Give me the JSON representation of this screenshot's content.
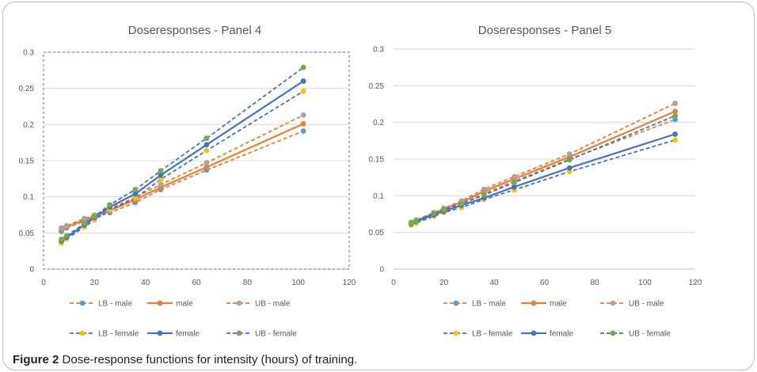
{
  "figure": {
    "caption_label": "Figure 2",
    "caption_text": " Dose-response functions for intensity (hours) of training."
  },
  "colors": {
    "male": "#ED7D31",
    "female": "#4472C4",
    "lb_male": "#5B9BD5",
    "ub_male": "#A5A5A5",
    "lb_female": "#FFC000",
    "ub_female": "#70AD47",
    "grid": "#d9d9d9",
    "axis_text": "#595959",
    "title_text": "#595959"
  },
  "chart_data": [
    {
      "type": "line",
      "title": "Doseresponses - Panel 4",
      "xlabel": "",
      "ylabel": "",
      "xlim": [
        0,
        120
      ],
      "ylim": [
        0,
        0.3
      ],
      "xticks": [
        "0",
        "20",
        "40",
        "60",
        "80",
        "100",
        "120"
      ],
      "yticks": [
        "0",
        "0.05",
        "0.1",
        "0.15",
        "0.2",
        "0.25",
        "0.3"
      ],
      "grid": true,
      "legend_position": "bottom",
      "x": [
        7,
        9,
        16,
        20,
        26,
        36,
        46,
        64,
        102
      ],
      "series": [
        {
          "name": "LB - male",
          "key": "lb_male",
          "line_color": "#ED7D31",
          "dash": true,
          "values": [
            0.052,
            0.057,
            0.066,
            0.071,
            0.078,
            0.092,
            0.11,
            0.137,
            0.191
          ]
        },
        {
          "name": "male",
          "key": "male",
          "line_color": "#ED7D31",
          "dash": false,
          "values": [
            0.055,
            0.058,
            0.068,
            0.073,
            0.081,
            0.096,
            0.113,
            0.141,
            0.201
          ]
        },
        {
          "name": "UB - male",
          "key": "ub_male",
          "line_color": "#ED7D31",
          "dash": true,
          "values": [
            0.057,
            0.06,
            0.07,
            0.075,
            0.084,
            0.099,
            0.117,
            0.147,
            0.213
          ]
        },
        {
          "name": "LB - female",
          "key": "lb_female",
          "line_color": "#4472C4",
          "dash": true,
          "values": [
            0.036,
            0.042,
            0.058,
            0.068,
            0.082,
            0.098,
            0.124,
            0.164,
            0.246
          ]
        },
        {
          "name": "female",
          "key": "female",
          "line_color": "#4472C4",
          "dash": false,
          "values": [
            0.039,
            0.044,
            0.061,
            0.071,
            0.086,
            0.104,
            0.13,
            0.172,
            0.26
          ]
        },
        {
          "name": "UB - female",
          "key": "ub_female",
          "line_color": "#4472C4",
          "dash": true,
          "values": [
            0.041,
            0.046,
            0.063,
            0.073,
            0.089,
            0.11,
            0.136,
            0.181,
            0.279
          ]
        }
      ]
    },
    {
      "type": "line",
      "title": "Doseresponses - Panel 5",
      "xlabel": "",
      "ylabel": "",
      "xlim": [
        0,
        120
      ],
      "ylim": [
        0,
        0.3
      ],
      "xticks": [
        "0",
        "20",
        "40",
        "60",
        "80",
        "100",
        "120"
      ],
      "yticks": [
        "0",
        "0.05",
        "0.1",
        "0.15",
        "0.2",
        "0.25",
        "0.3"
      ],
      "grid": true,
      "legend_position": "bottom",
      "x": [
        7,
        9,
        16,
        20,
        27,
        36,
        48,
        70,
        112
      ],
      "series": [
        {
          "name": "LB - male",
          "key": "lb_male",
          "line_color": "#ED7D31",
          "dash": true,
          "values": [
            0.062,
            0.065,
            0.075,
            0.081,
            0.089,
            0.103,
            0.12,
            0.15,
            0.204
          ]
        },
        {
          "name": "male",
          "key": "male",
          "line_color": "#ED7D31",
          "dash": false,
          "values": [
            0.063,
            0.066,
            0.076,
            0.082,
            0.091,
            0.106,
            0.123,
            0.153,
            0.215
          ]
        },
        {
          "name": "UB - male",
          "key": "ub_male",
          "line_color": "#ED7D31",
          "dash": true,
          "values": [
            0.064,
            0.067,
            0.077,
            0.083,
            0.093,
            0.109,
            0.126,
            0.157,
            0.226
          ]
        },
        {
          "name": "LB - female",
          "key": "lb_female",
          "line_color": "#4472C4",
          "dash": true,
          "values": [
            0.06,
            0.063,
            0.072,
            0.077,
            0.084,
            0.095,
            0.108,
            0.133,
            0.176
          ]
        },
        {
          "name": "female",
          "key": "female",
          "line_color": "#4472C4",
          "dash": false,
          "values": [
            0.062,
            0.065,
            0.074,
            0.079,
            0.087,
            0.097,
            0.112,
            0.138,
            0.184
          ]
        },
        {
          "name": "UB - female",
          "key": "ub_female",
          "line_color": "#4472C4",
          "dash": true,
          "values": [
            0.063,
            0.066,
            0.076,
            0.081,
            0.089,
            0.101,
            0.118,
            0.149,
            0.209
          ]
        }
      ]
    }
  ]
}
